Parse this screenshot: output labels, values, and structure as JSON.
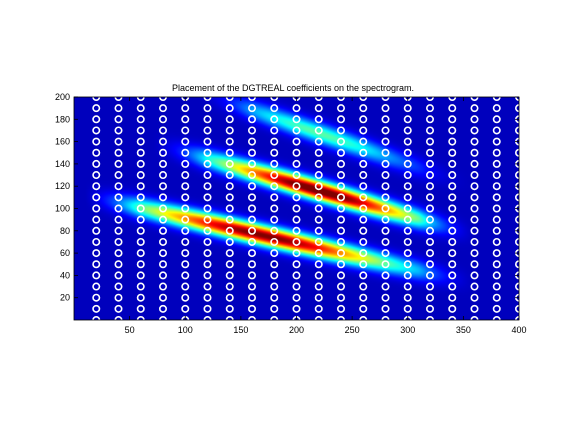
{
  "chart_data": {
    "type": "heatmap",
    "title": "Placement of the DGTREAL coefficients on the spectrogram.",
    "xlabel": "",
    "ylabel": "",
    "xlim": [
      0,
      400
    ],
    "ylim": [
      0,
      200
    ],
    "x_ticks": [
      50,
      100,
      150,
      200,
      250,
      300,
      350,
      400
    ],
    "y_ticks": [
      20,
      40,
      60,
      80,
      100,
      120,
      140,
      160,
      180,
      200
    ],
    "grid": false,
    "colormap": "jet",
    "background_color": "#00008f",
    "marker_color": "#ffffff",
    "markers": {
      "shape": "circle",
      "x_start": 20,
      "x_step": 20,
      "x_count": 20,
      "y_start": 0,
      "y_step": 10,
      "y_count": 21
    },
    "energy_ridges": [
      {
        "x_start": 40,
        "x_end": 330,
        "y_start": 105,
        "y_end": 40,
        "peak_x": 170,
        "peak_value": 0.95
      },
      {
        "x_start": 100,
        "x_end": 330,
        "y_start": 150,
        "y_end": 85,
        "peak_x": 220,
        "peak_value": 1.0
      },
      {
        "x_start": 140,
        "x_end": 330,
        "y_start": 195,
        "y_end": 130,
        "peak_x": 220,
        "peak_value": 0.4
      }
    ]
  }
}
